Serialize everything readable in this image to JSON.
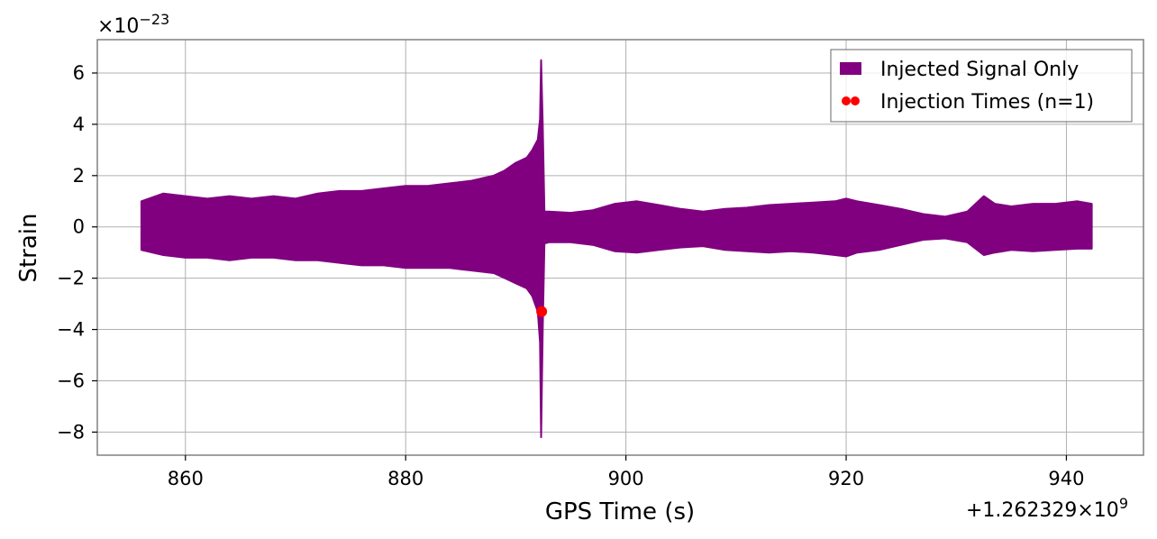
{
  "chart_data": {
    "type": "line",
    "xlabel": "GPS Time (s)",
    "ylabel": "Strain",
    "x_offset_label": "+1.262329×10",
    "x_offset_exponent": "9",
    "y_scale_label": "×10",
    "y_scale_exponent": "−23",
    "xlim": [
      852,
      947
    ],
    "ylim": [
      -8.9,
      7.3
    ],
    "xticks": [
      860,
      880,
      900,
      920,
      940
    ],
    "xtick_labels": [
      "860",
      "880",
      "900",
      "920",
      "940"
    ],
    "yticks": [
      6,
      4,
      2,
      0,
      -2,
      -4,
      -6,
      -8
    ],
    "ytick_labels": [
      "6",
      "4",
      "2",
      "0",
      "−2",
      "−4",
      "−6",
      "−8"
    ],
    "grid": true,
    "legend_position": "top-right",
    "series": [
      {
        "name": "Injected Signal Only",
        "color": "#800080",
        "kind": "envelope",
        "x": [
          856.0,
          858,
          860,
          862,
          864,
          866,
          868,
          870,
          872,
          874,
          876,
          878,
          880,
          882,
          884,
          886,
          888,
          889,
          890,
          891,
          891.5,
          892.0,
          892.2,
          892.3,
          892.45,
          892.6,
          893,
          895,
          897,
          899,
          901,
          903,
          905,
          907,
          909,
          911,
          913,
          915,
          917,
          919,
          920,
          921,
          923,
          925,
          927,
          929,
          931,
          932.5,
          933.5,
          935,
          937,
          939,
          941,
          942.3
        ],
        "upper": [
          1.0,
          1.3,
          1.2,
          1.1,
          1.2,
          1.1,
          1.2,
          1.1,
          1.3,
          1.4,
          1.4,
          1.5,
          1.6,
          1.6,
          1.7,
          1.8,
          2.0,
          2.2,
          2.5,
          2.7,
          3.0,
          3.4,
          4.2,
          6.5,
          4.0,
          0.6,
          0.6,
          0.55,
          0.65,
          0.9,
          1.0,
          0.85,
          0.7,
          0.6,
          0.7,
          0.75,
          0.85,
          0.9,
          0.95,
          1.0,
          1.1,
          1.0,
          0.85,
          0.7,
          0.5,
          0.4,
          0.6,
          1.2,
          0.9,
          0.8,
          0.9,
          0.9,
          1.0,
          0.9
        ],
        "lower": [
          -0.9,
          -1.1,
          -1.2,
          -1.2,
          -1.3,
          -1.2,
          -1.2,
          -1.3,
          -1.3,
          -1.4,
          -1.5,
          -1.5,
          -1.6,
          -1.6,
          -1.6,
          -1.7,
          -1.8,
          -2.0,
          -2.2,
          -2.4,
          -2.7,
          -3.3,
          -4.5,
          -8.2,
          -4.0,
          -0.65,
          -0.6,
          -0.6,
          -0.7,
          -0.95,
          -1.0,
          -0.9,
          -0.8,
          -0.75,
          -0.9,
          -0.95,
          -1.0,
          -0.95,
          -1.0,
          -1.1,
          -1.15,
          -1.0,
          -0.9,
          -0.7,
          -0.5,
          -0.45,
          -0.6,
          -1.1,
          -1.0,
          -0.9,
          -0.95,
          -0.9,
          -0.85,
          -0.85
        ]
      },
      {
        "name": "Injection Times (n=1)",
        "color": "#ff0000",
        "kind": "scatter",
        "x": [
          892.35
        ],
        "y": [
          -3.3
        ]
      }
    ]
  }
}
